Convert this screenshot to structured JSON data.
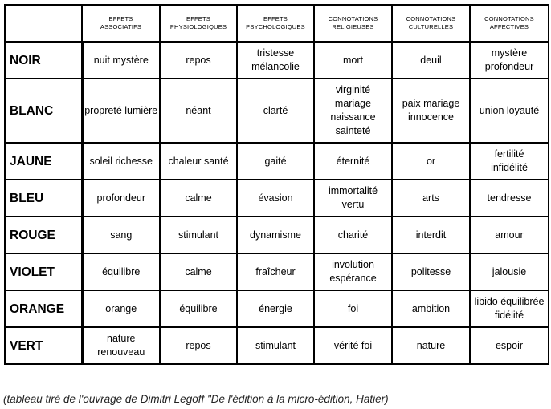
{
  "headers": [
    "EFFETS\nASSOCIATIFS",
    "EFFETS\nPHYSIOLOGIQUES",
    "EFFETS\nPSYCHOLOGIQUES",
    "CONNOTATIONS\nRELIGIEUSES",
    "CONNOTATIONS\nCULTURELLES",
    "CONNOTATIONS\nAFFECTIVES"
  ],
  "rows": [
    {
      "label": "NOIR",
      "cells": [
        "nuit mystère",
        "repos",
        "tristesse\nmélancolie",
        "mort",
        "deuil",
        "mystère\nprofondeur"
      ]
    },
    {
      "label": "BLANC",
      "cells": [
        "propreté lumière",
        "néant",
        "clarté",
        "virginité\nmariage\nnaissance\nsainteté",
        "paix mariage\ninnocence",
        "union loyauté"
      ]
    },
    {
      "label": "JAUNE",
      "cells": [
        "soleil richesse",
        "chaleur santé",
        "gaité",
        "éternité",
        "or",
        "fertilité\ninfidélité"
      ]
    },
    {
      "label": "BLEU",
      "cells": [
        "profondeur",
        "calme",
        "évasion",
        "immortalité\nvertu",
        "arts",
        "tendresse"
      ]
    },
    {
      "label": "ROUGE",
      "cells": [
        "sang",
        "stimulant",
        "dynamisme",
        "charité",
        "interdit",
        "amour"
      ]
    },
    {
      "label": "VIOLET",
      "cells": [
        "équilibre",
        "calme",
        "fraîcheur",
        "involution\nespérance",
        "politesse",
        "jalousie"
      ]
    },
    {
      "label": "ORANGE",
      "cells": [
        "orange",
        "équilibre",
        "énergie",
        "foi",
        "ambition",
        "libido équilibrée\nfidélité"
      ]
    },
    {
      "label": "VERT",
      "cells": [
        "nature\nrenouveau",
        "repos",
        "stimulant",
        "vérité foi",
        "nature",
        "espoir"
      ]
    }
  ],
  "caption": "(tableau tiré de l'ouvrage de Dimitri Legoff \"De l'édition à la micro-édition, Hatier)"
}
